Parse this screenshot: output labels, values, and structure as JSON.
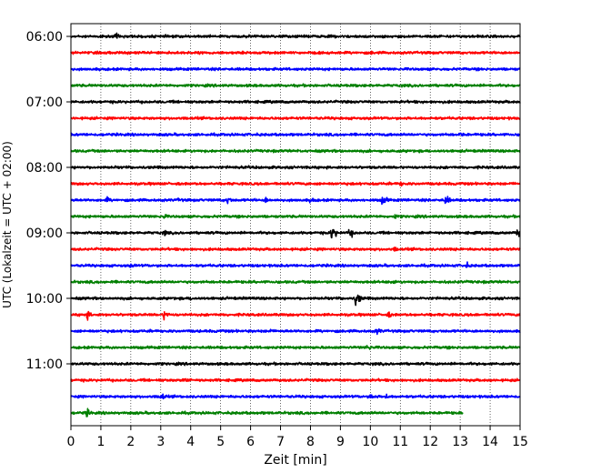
{
  "chart_data": {
    "type": "line",
    "title": "",
    "xlabel": "Zeit  [min]",
    "ylabel": "UTC (Lokalzeit = UTC + 02:00)",
    "xlim": [
      0,
      15
    ],
    "x_ticks": [
      0,
      1,
      2,
      3,
      4,
      5,
      6,
      7,
      8,
      9,
      10,
      11,
      12,
      13,
      14,
      15
    ],
    "y_tick_labels": [
      "06:00",
      "07:00",
      "08:00",
      "09:00",
      "10:00",
      "11:00"
    ],
    "grid": "vertical dotted lines at each minute",
    "trace_colors": [
      "#000000",
      "#ff0000",
      "#0000ff",
      "#007f00"
    ],
    "trace_start_times_utc": [
      "06:00",
      "06:15",
      "06:30",
      "06:45",
      "07:00",
      "07:15",
      "07:30",
      "07:45",
      "08:00",
      "08:15",
      "08:30",
      "08:45",
      "09:00",
      "09:15",
      "09:30",
      "09:45",
      "10:00",
      "10:15",
      "10:30",
      "10:45",
      "11:00",
      "11:15",
      "11:30",
      "11:45"
    ],
    "trace_end_minute_last": 13.1,
    "events": [
      {
        "trace": 0,
        "minute": 1.5,
        "amplitude": 0.35
      },
      {
        "trace": 1,
        "minute": 10.0,
        "amplitude": 0.25
      },
      {
        "trace": 6,
        "minute": 13.0,
        "amplitude": 0.3
      },
      {
        "trace": 9,
        "minute": 11.0,
        "amplitude": 0.3
      },
      {
        "trace": 10,
        "minute": 1.2,
        "amplitude": 0.35
      },
      {
        "trace": 10,
        "minute": 3.6,
        "amplitude": 0.3
      },
      {
        "trace": 10,
        "minute": 5.2,
        "amplitude": 0.5
      },
      {
        "trace": 10,
        "minute": 6.5,
        "amplitude": 0.35
      },
      {
        "trace": 10,
        "minute": 8.0,
        "amplitude": 0.4
      },
      {
        "trace": 10,
        "minute": 10.4,
        "amplitude": 0.6
      },
      {
        "trace": 10,
        "minute": 12.5,
        "amplitude": 0.55
      },
      {
        "trace": 11,
        "minute": 3.1,
        "amplitude": 0.3
      },
      {
        "trace": 11,
        "minute": 10.8,
        "amplitude": 0.3
      },
      {
        "trace": 12,
        "minute": 3.1,
        "amplitude": 0.35
      },
      {
        "trace": 12,
        "minute": 8.7,
        "amplitude": 0.85
      },
      {
        "trace": 12,
        "minute": 9.3,
        "amplitude": 0.55
      },
      {
        "trace": 12,
        "minute": 14.9,
        "amplitude": 0.5
      },
      {
        "trace": 13,
        "minute": 10.8,
        "amplitude": 0.3
      },
      {
        "trace": 14,
        "minute": 2.0,
        "amplitude": 0.3
      },
      {
        "trace": 14,
        "minute": 13.2,
        "amplitude": 0.35
      },
      {
        "trace": 15,
        "minute": 10.7,
        "amplitude": 0.3
      },
      {
        "trace": 16,
        "minute": 4.0,
        "amplitude": 0.25
      },
      {
        "trace": 16,
        "minute": 9.5,
        "amplitude": 0.9
      },
      {
        "trace": 17,
        "minute": 0.5,
        "amplitude": 0.6
      },
      {
        "trace": 17,
        "minute": 3.1,
        "amplitude": 0.55
      },
      {
        "trace": 17,
        "minute": 10.6,
        "amplitude": 0.35
      },
      {
        "trace": 18,
        "minute": 6.6,
        "amplitude": 0.3
      },
      {
        "trace": 18,
        "minute": 10.2,
        "amplitude": 0.45
      },
      {
        "trace": 19,
        "minute": 9.9,
        "amplitude": 0.45
      },
      {
        "trace": 21,
        "minute": 3.8,
        "amplitude": 0.4
      },
      {
        "trace": 22,
        "minute": 3.0,
        "amplitude": 0.5
      },
      {
        "trace": 22,
        "minute": 10.0,
        "amplitude": 0.45
      },
      {
        "trace": 22,
        "minute": 10.5,
        "amplitude": 0.35
      },
      {
        "trace": 23,
        "minute": 0.5,
        "amplitude": 0.5
      }
    ]
  }
}
